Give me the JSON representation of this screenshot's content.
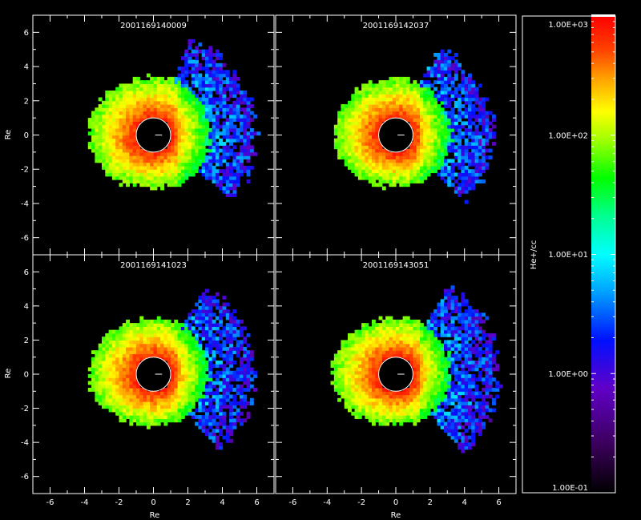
{
  "chart_data": {
    "type": "heatmap",
    "xlabel": "Re",
    "ylabel": "Re",
    "xlim": [
      -7,
      7
    ],
    "ylim": [
      -7,
      7
    ],
    "xticks": [
      -6,
      -4,
      -2,
      0,
      2,
      4,
      6
    ],
    "yticks": [
      -6,
      -4,
      -2,
      0,
      2,
      4,
      6
    ],
    "panels": [
      {
        "title": "2001169140009",
        "plasmapause_radius": {
          "east": 3.3,
          "west": 3.8,
          "north": 3.4,
          "south": 3.1
        },
        "plume": {
          "extent": 5.8,
          "angle_deg": 15
        }
      },
      {
        "title": "2001169142037",
        "plasmapause_radius": {
          "east": 3.2,
          "west": 3.6,
          "north": 3.3,
          "south": 3.0
        },
        "plume": {
          "extent": 5.5,
          "angle_deg": 10
        }
      },
      {
        "title": "2001169141023",
        "plasmapause_radius": {
          "east": 3.2,
          "west": 3.7,
          "north": 3.3,
          "south": 3.0
        },
        "plume": {
          "extent": 5.8,
          "angle_deg": 5
        }
      },
      {
        "title": "2001169143051",
        "plasmapause_radius": {
          "east": 3.2,
          "west": 3.7,
          "north": 3.3,
          "south": 3.0
        },
        "plume": {
          "extent": 5.9,
          "angle_deg": 5
        }
      }
    ],
    "colorbar": {
      "label": "He+/cc",
      "scale": "log",
      "range": [
        0.1,
        1000
      ],
      "ticks": [
        {
          "value": 1000,
          "label": "1.00E+03"
        },
        {
          "value": 100,
          "label": "1.00E+02"
        },
        {
          "value": 10,
          "label": "1.00E+01"
        },
        {
          "value": 1,
          "label": "1.00E+00"
        },
        {
          "value": 0.1,
          "label": "1.00E-01"
        }
      ]
    }
  }
}
